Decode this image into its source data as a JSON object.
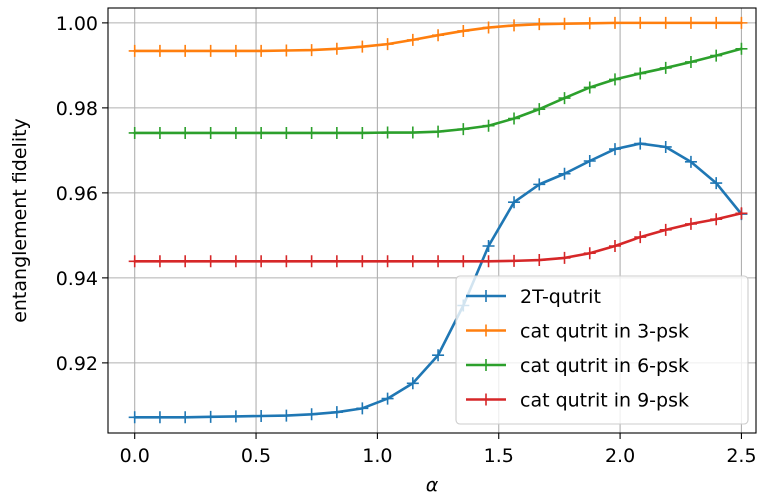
{
  "chart_data": {
    "type": "line",
    "xlabel": "α",
    "ylabel": "entanglement fidelity",
    "xlim": [
      -0.11,
      2.56
    ],
    "ylim": [
      0.9035,
      1.0035
    ],
    "xticks": [
      0.0,
      0.5,
      1.0,
      1.5,
      2.0,
      2.5
    ],
    "xtick_labels": [
      "0.0",
      "0.5",
      "1.0",
      "1.5",
      "2.0",
      "2.5"
    ],
    "yticks": [
      0.92,
      0.94,
      0.96,
      0.98,
      1.0
    ],
    "ytick_labels": [
      "0.92",
      "0.94",
      "0.96",
      "0.98",
      "1.00"
    ],
    "grid": true,
    "legend_position": "bottom-right",
    "x": [
      0.0,
      0.104,
      0.208,
      0.313,
      0.417,
      0.521,
      0.625,
      0.729,
      0.833,
      0.938,
      1.042,
      1.146,
      1.25,
      1.354,
      1.458,
      1.563,
      1.667,
      1.771,
      1.875,
      1.979,
      2.083,
      2.188,
      2.292,
      2.396,
      2.5
    ],
    "series": [
      {
        "name": "2T-qutrit",
        "color": "#1f77b4",
        "values": [
          0.9072,
          0.9072,
          0.9072,
          0.9073,
          0.9074,
          0.9075,
          0.9076,
          0.9079,
          0.9084,
          0.9093,
          0.9116,
          0.9152,
          0.9218,
          0.9335,
          0.9475,
          0.9578,
          0.962,
          0.9645,
          0.9675,
          0.9703,
          0.9716,
          0.9708,
          0.9673,
          0.9623,
          0.955
        ]
      },
      {
        "name": "cat qutrit in 3-psk",
        "color": "#ff7f0e",
        "values": [
          0.9934,
          0.9934,
          0.9934,
          0.9934,
          0.9934,
          0.9934,
          0.9935,
          0.9936,
          0.9939,
          0.9944,
          0.995,
          0.996,
          0.9971,
          0.9981,
          0.9989,
          0.9994,
          0.9997,
          0.9998,
          0.9999,
          1.0,
          1.0,
          1.0,
          1.0,
          1.0,
          1.0
        ]
      },
      {
        "name": "cat qutrit in 6-psk",
        "color": "#2ca02c",
        "values": [
          0.9741,
          0.9741,
          0.9741,
          0.9741,
          0.9741,
          0.9741,
          0.9741,
          0.9741,
          0.9741,
          0.9741,
          0.9742,
          0.9742,
          0.9744,
          0.975,
          0.9758,
          0.9775,
          0.9797,
          0.9823,
          0.9848,
          0.9867,
          0.9881,
          0.9894,
          0.9908,
          0.9923,
          0.9939
        ]
      },
      {
        "name": "cat qutrit in 9-psk",
        "color": "#d62728",
        "values": [
          0.9439,
          0.9439,
          0.9439,
          0.9439,
          0.9439,
          0.9439,
          0.9439,
          0.9439,
          0.9439,
          0.9439,
          0.9439,
          0.9439,
          0.9439,
          0.9439,
          0.9439,
          0.944,
          0.9442,
          0.9447,
          0.9458,
          0.9475,
          0.9496,
          0.9513,
          0.9527,
          0.9538,
          0.9552
        ]
      }
    ]
  }
}
